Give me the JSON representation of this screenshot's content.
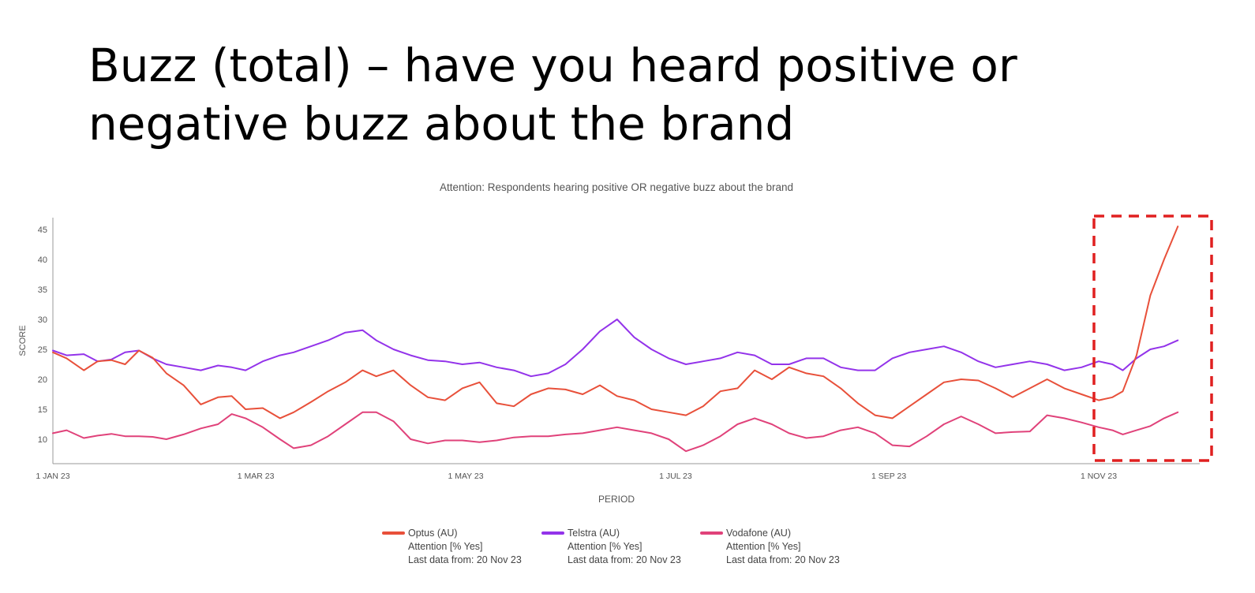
{
  "slide": {
    "title_line1": "Buzz (total) – have you heard positive or",
    "title_line2": "negative buzz about the brand"
  },
  "colors": {
    "optus": "#E8503A",
    "telstra": "#9333EA",
    "vodafone": "#E0427A",
    "highlight": "#E02020",
    "axis_text": "#555555"
  },
  "legend": [
    {
      "name": "Optus (AU)",
      "measure": "Attention [% Yes]",
      "last": "Last data from: 20 Nov 23",
      "color": "#E8503A"
    },
    {
      "name": "Telstra (AU)",
      "measure": "Attention [% Yes]",
      "last": "Last data from: 20 Nov 23",
      "color": "#9333EA"
    },
    {
      "name": "Vodafone (AU)",
      "measure": "Attention [% Yes]",
      "last": "Last data from: 20 Nov 23",
      "color": "#E0427A"
    }
  ],
  "chart_data": {
    "type": "line",
    "title": "Attention: Respondents hearing positive OR negative buzz about the brand",
    "xlabel": "PERIOD",
    "ylabel": "SCORE",
    "x_ticks": [
      "1 JAN 23",
      "1 MAR 23",
      "1 MAY 23",
      "1 JUL 23",
      "1 SEP 23",
      "1 NOV 23"
    ],
    "y_ticks": [
      10,
      15,
      20,
      25,
      30,
      35,
      40,
      45
    ],
    "ylim": [
      6,
      47
    ],
    "xlim": [
      "2023-01-01",
      "2023-11-24"
    ],
    "grid": false,
    "legend_position": "bottom",
    "highlight": {
      "label": "",
      "from": "2023-11-01",
      "to": "2023-11-24",
      "style": "dashed"
    },
    "series": [
      {
        "name": "Optus (AU)",
        "points": [
          [
            "2023-01-01",
            24.5
          ],
          [
            "2023-01-05",
            23.5
          ],
          [
            "2023-01-10",
            21.5
          ],
          [
            "2023-01-14",
            23
          ],
          [
            "2023-01-18",
            23.2
          ],
          [
            "2023-01-22",
            22.5
          ],
          [
            "2023-01-26",
            24.8
          ],
          [
            "2023-01-30",
            23.6
          ],
          [
            "2023-02-03",
            21
          ],
          [
            "2023-02-08",
            19
          ],
          [
            "2023-02-13",
            15.8
          ],
          [
            "2023-02-18",
            17
          ],
          [
            "2023-02-22",
            17.2
          ],
          [
            "2023-02-26",
            15
          ],
          [
            "2023-03-03",
            15.2
          ],
          [
            "2023-03-08",
            13.5
          ],
          [
            "2023-03-12",
            14.5
          ],
          [
            "2023-03-17",
            16.2
          ],
          [
            "2023-03-22",
            18
          ],
          [
            "2023-03-27",
            19.5
          ],
          [
            "2023-04-01",
            21.5
          ],
          [
            "2023-04-05",
            20.5
          ],
          [
            "2023-04-10",
            21.5
          ],
          [
            "2023-04-15",
            19
          ],
          [
            "2023-04-20",
            17
          ],
          [
            "2023-04-25",
            16.5
          ],
          [
            "2023-04-30",
            18.5
          ],
          [
            "2023-05-05",
            19.5
          ],
          [
            "2023-05-10",
            16
          ],
          [
            "2023-05-15",
            15.5
          ],
          [
            "2023-05-20",
            17.5
          ],
          [
            "2023-05-25",
            18.5
          ],
          [
            "2023-05-30",
            18.3
          ],
          [
            "2023-06-04",
            17.5
          ],
          [
            "2023-06-09",
            19
          ],
          [
            "2023-06-14",
            17.2
          ],
          [
            "2023-06-19",
            16.5
          ],
          [
            "2023-06-24",
            15
          ],
          [
            "2023-06-29",
            14.5
          ],
          [
            "2023-07-04",
            14
          ],
          [
            "2023-07-09",
            15.5
          ],
          [
            "2023-07-14",
            18
          ],
          [
            "2023-07-19",
            18.5
          ],
          [
            "2023-07-24",
            21.5
          ],
          [
            "2023-07-29",
            20
          ],
          [
            "2023-08-03",
            22
          ],
          [
            "2023-08-08",
            21
          ],
          [
            "2023-08-13",
            20.5
          ],
          [
            "2023-08-18",
            18.5
          ],
          [
            "2023-08-23",
            16
          ],
          [
            "2023-08-28",
            14
          ],
          [
            "2023-09-02",
            13.5
          ],
          [
            "2023-09-07",
            15.5
          ],
          [
            "2023-09-12",
            17.5
          ],
          [
            "2023-09-17",
            19.5
          ],
          [
            "2023-09-22",
            20
          ],
          [
            "2023-09-27",
            19.8
          ],
          [
            "2023-10-02",
            18.5
          ],
          [
            "2023-10-07",
            17
          ],
          [
            "2023-10-12",
            18.5
          ],
          [
            "2023-10-17",
            20
          ],
          [
            "2023-10-22",
            18.5
          ],
          [
            "2023-10-27",
            17.5
          ],
          [
            "2023-11-01",
            16.5
          ],
          [
            "2023-11-05",
            17
          ],
          [
            "2023-11-08",
            18
          ],
          [
            "2023-11-12",
            24
          ],
          [
            "2023-11-16",
            34
          ],
          [
            "2023-11-20",
            40
          ],
          [
            "2023-11-24",
            45.5
          ]
        ]
      },
      {
        "name": "Telstra (AU)",
        "points": [
          [
            "2023-01-01",
            24.8
          ],
          [
            "2023-01-05",
            24
          ],
          [
            "2023-01-10",
            24.2
          ],
          [
            "2023-01-14",
            23
          ],
          [
            "2023-01-18",
            23.3
          ],
          [
            "2023-01-22",
            24.5
          ],
          [
            "2023-01-26",
            24.8
          ],
          [
            "2023-01-30",
            23.5
          ],
          [
            "2023-02-03",
            22.5
          ],
          [
            "2023-02-08",
            22
          ],
          [
            "2023-02-13",
            21.5
          ],
          [
            "2023-02-18",
            22.3
          ],
          [
            "2023-02-22",
            22
          ],
          [
            "2023-02-26",
            21.5
          ],
          [
            "2023-03-03",
            23
          ],
          [
            "2023-03-08",
            24
          ],
          [
            "2023-03-12",
            24.5
          ],
          [
            "2023-03-17",
            25.5
          ],
          [
            "2023-03-22",
            26.5
          ],
          [
            "2023-03-27",
            27.8
          ],
          [
            "2023-04-01",
            28.2
          ],
          [
            "2023-04-05",
            26.5
          ],
          [
            "2023-04-10",
            25
          ],
          [
            "2023-04-15",
            24
          ],
          [
            "2023-04-20",
            23.2
          ],
          [
            "2023-04-25",
            23
          ],
          [
            "2023-04-30",
            22.5
          ],
          [
            "2023-05-05",
            22.8
          ],
          [
            "2023-05-10",
            22
          ],
          [
            "2023-05-15",
            21.5
          ],
          [
            "2023-05-20",
            20.5
          ],
          [
            "2023-05-25",
            21
          ],
          [
            "2023-05-30",
            22.5
          ],
          [
            "2023-06-04",
            25
          ],
          [
            "2023-06-09",
            28
          ],
          [
            "2023-06-14",
            30
          ],
          [
            "2023-06-19",
            27
          ],
          [
            "2023-06-24",
            25
          ],
          [
            "2023-06-29",
            23.5
          ],
          [
            "2023-07-04",
            22.5
          ],
          [
            "2023-07-09",
            23
          ],
          [
            "2023-07-14",
            23.5
          ],
          [
            "2023-07-19",
            24.5
          ],
          [
            "2023-07-24",
            24
          ],
          [
            "2023-07-29",
            22.5
          ],
          [
            "2023-08-03",
            22.5
          ],
          [
            "2023-08-08",
            23.5
          ],
          [
            "2023-08-13",
            23.5
          ],
          [
            "2023-08-18",
            22
          ],
          [
            "2023-08-23",
            21.5
          ],
          [
            "2023-08-28",
            21.5
          ],
          [
            "2023-09-02",
            23.5
          ],
          [
            "2023-09-07",
            24.5
          ],
          [
            "2023-09-12",
            25
          ],
          [
            "2023-09-17",
            25.5
          ],
          [
            "2023-09-22",
            24.5
          ],
          [
            "2023-09-27",
            23
          ],
          [
            "2023-10-02",
            22
          ],
          [
            "2023-10-07",
            22.5
          ],
          [
            "2023-10-12",
            23
          ],
          [
            "2023-10-17",
            22.5
          ],
          [
            "2023-10-22",
            21.5
          ],
          [
            "2023-10-27",
            22
          ],
          [
            "2023-11-01",
            23
          ],
          [
            "2023-11-05",
            22.5
          ],
          [
            "2023-11-08",
            21.5
          ],
          [
            "2023-11-12",
            23.5
          ],
          [
            "2023-11-16",
            25
          ],
          [
            "2023-11-20",
            25.5
          ],
          [
            "2023-11-24",
            26.5
          ]
        ]
      },
      {
        "name": "Vodafone (AU)",
        "points": [
          [
            "2023-01-01",
            11
          ],
          [
            "2023-01-05",
            11.5
          ],
          [
            "2023-01-10",
            10.2
          ],
          [
            "2023-01-14",
            10.6
          ],
          [
            "2023-01-18",
            10.9
          ],
          [
            "2023-01-22",
            10.5
          ],
          [
            "2023-01-26",
            10.5
          ],
          [
            "2023-01-30",
            10.4
          ],
          [
            "2023-02-03",
            10
          ],
          [
            "2023-02-08",
            10.8
          ],
          [
            "2023-02-13",
            11.8
          ],
          [
            "2023-02-18",
            12.5
          ],
          [
            "2023-02-22",
            14.2
          ],
          [
            "2023-02-26",
            13.5
          ],
          [
            "2023-03-03",
            12
          ],
          [
            "2023-03-08",
            10
          ],
          [
            "2023-03-12",
            8.5
          ],
          [
            "2023-03-17",
            9
          ],
          [
            "2023-03-22",
            10.5
          ],
          [
            "2023-03-27",
            12.5
          ],
          [
            "2023-04-01",
            14.5
          ],
          [
            "2023-04-05",
            14.5
          ],
          [
            "2023-04-10",
            13
          ],
          [
            "2023-04-15",
            10
          ],
          [
            "2023-04-20",
            9.3
          ],
          [
            "2023-04-25",
            9.8
          ],
          [
            "2023-04-30",
            9.8
          ],
          [
            "2023-05-05",
            9.5
          ],
          [
            "2023-05-10",
            9.8
          ],
          [
            "2023-05-15",
            10.3
          ],
          [
            "2023-05-20",
            10.5
          ],
          [
            "2023-05-25",
            10.5
          ],
          [
            "2023-05-30",
            10.8
          ],
          [
            "2023-06-04",
            11
          ],
          [
            "2023-06-09",
            11.5
          ],
          [
            "2023-06-14",
            12
          ],
          [
            "2023-06-19",
            11.5
          ],
          [
            "2023-06-24",
            11
          ],
          [
            "2023-06-29",
            10
          ],
          [
            "2023-07-04",
            8
          ],
          [
            "2023-07-09",
            9
          ],
          [
            "2023-07-14",
            10.5
          ],
          [
            "2023-07-19",
            12.5
          ],
          [
            "2023-07-24",
            13.5
          ],
          [
            "2023-07-29",
            12.5
          ],
          [
            "2023-08-03",
            11
          ],
          [
            "2023-08-08",
            10.2
          ],
          [
            "2023-08-13",
            10.5
          ],
          [
            "2023-08-18",
            11.5
          ],
          [
            "2023-08-23",
            12
          ],
          [
            "2023-08-28",
            11
          ],
          [
            "2023-09-02",
            9
          ],
          [
            "2023-09-07",
            8.8
          ],
          [
            "2023-09-12",
            10.5
          ],
          [
            "2023-09-17",
            12.5
          ],
          [
            "2023-09-22",
            13.8
          ],
          [
            "2023-09-27",
            12.5
          ],
          [
            "2023-10-02",
            11
          ],
          [
            "2023-10-07",
            11.2
          ],
          [
            "2023-10-12",
            11.3
          ],
          [
            "2023-10-17",
            14
          ],
          [
            "2023-10-22",
            13.5
          ],
          [
            "2023-10-27",
            12.8
          ],
          [
            "2023-11-01",
            12
          ],
          [
            "2023-11-05",
            11.5
          ],
          [
            "2023-11-08",
            10.8
          ],
          [
            "2023-11-12",
            11.5
          ],
          [
            "2023-11-16",
            12.2
          ],
          [
            "2023-11-20",
            13.5
          ],
          [
            "2023-11-24",
            14.5
          ]
        ]
      }
    ]
  }
}
